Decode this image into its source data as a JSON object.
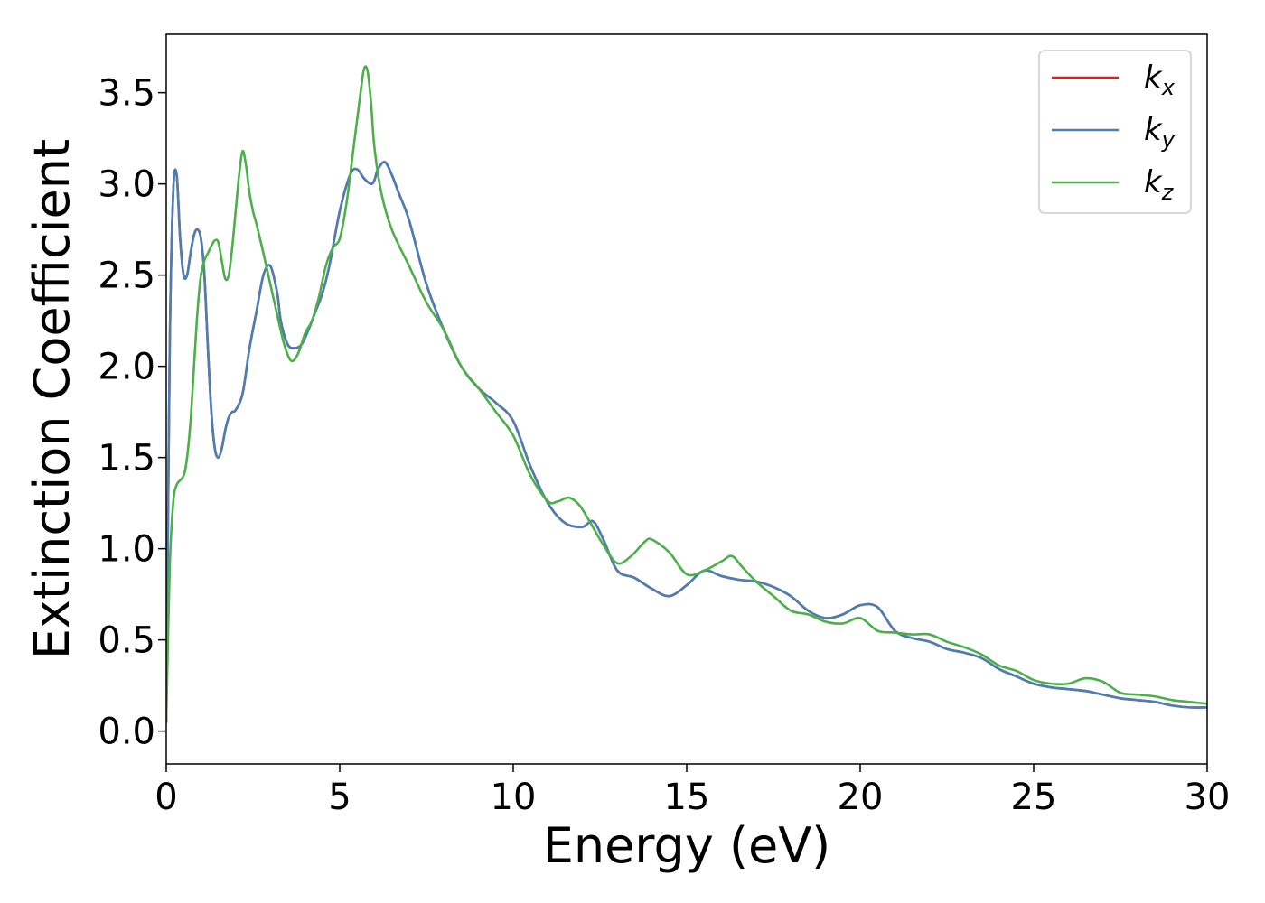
{
  "chart_data": {
    "type": "line",
    "title": "",
    "xlabel": "Energy (eV)",
    "ylabel": "Extinction Coefficient",
    "xlim": [
      0,
      30
    ],
    "ylim": [
      -0.18,
      3.82
    ],
    "xticks": [
      0,
      5,
      10,
      15,
      20,
      25,
      30
    ],
    "xtick_labels": [
      "0",
      "5",
      "10",
      "15",
      "20",
      "25",
      "30"
    ],
    "yticks": [
      0.0,
      0.5,
      1.0,
      1.5,
      2.0,
      2.5,
      3.0,
      3.5
    ],
    "ytick_labels": [
      "0.0",
      "0.5",
      "1.0",
      "1.5",
      "2.0",
      "2.5",
      "3.0",
      "3.5"
    ],
    "grid": false,
    "legend_position": "top-right",
    "series": [
      {
        "name": "k",
        "subscript": "x",
        "color": "#e41a1c",
        "x": [
          0,
          0.1,
          0.2,
          0.3,
          0.4,
          0.5,
          0.6,
          0.7,
          0.8,
          0.9,
          1.0,
          1.1,
          1.2,
          1.3,
          1.4,
          1.5,
          1.6,
          1.7,
          1.8,
          1.9,
          2.0,
          2.2,
          2.4,
          2.6,
          2.8,
          3.0,
          3.2,
          3.3,
          3.5,
          3.7,
          3.9,
          4.1,
          4.3,
          4.5,
          4.7,
          5.0,
          5.3,
          5.5,
          5.7,
          5.9,
          6.0,
          6.1,
          6.3,
          6.5,
          6.7,
          7.0,
          7.5,
          8.0,
          8.5,
          9.0,
          9.5,
          10.0,
          10.5,
          11.0,
          11.5,
          12.0,
          12.3,
          12.6,
          13.0,
          13.5,
          14.0,
          14.5,
          15.0,
          15.5,
          16.0,
          16.5,
          17.0,
          17.5,
          18.0,
          18.5,
          19.0,
          19.5,
          20.0,
          20.5,
          21.0,
          21.5,
          22.0,
          22.5,
          23.0,
          23.5,
          24.0,
          24.5,
          25.0,
          25.5,
          26.0,
          26.5,
          27.0,
          27.5,
          28.0,
          28.5,
          29.0,
          29.5,
          30.0
        ],
        "y": [
          0.05,
          2.1,
          2.95,
          3.05,
          2.7,
          2.5,
          2.5,
          2.62,
          2.72,
          2.75,
          2.7,
          2.5,
          2.1,
          1.75,
          1.55,
          1.5,
          1.55,
          1.65,
          1.72,
          1.75,
          1.76,
          1.85,
          2.1,
          2.3,
          2.5,
          2.55,
          2.4,
          2.25,
          2.12,
          2.1,
          2.12,
          2.2,
          2.3,
          2.4,
          2.55,
          2.85,
          3.05,
          3.08,
          3.03,
          3.0,
          3.02,
          3.08,
          3.12,
          3.05,
          2.95,
          2.8,
          2.45,
          2.2,
          2.0,
          1.88,
          1.8,
          1.7,
          1.45,
          1.25,
          1.14,
          1.12,
          1.15,
          1.05,
          0.88,
          0.84,
          0.78,
          0.74,
          0.8,
          0.88,
          0.85,
          0.83,
          0.82,
          0.79,
          0.74,
          0.66,
          0.62,
          0.64,
          0.69,
          0.68,
          0.55,
          0.51,
          0.49,
          0.45,
          0.43,
          0.4,
          0.34,
          0.3,
          0.26,
          0.24,
          0.23,
          0.22,
          0.2,
          0.18,
          0.17,
          0.16,
          0.14,
          0.13,
          0.13
        ]
      },
      {
        "name": "k",
        "subscript": "y",
        "color": "#4a7fb5",
        "x": [
          0,
          0.1,
          0.2,
          0.3,
          0.4,
          0.5,
          0.6,
          0.7,
          0.8,
          0.9,
          1.0,
          1.1,
          1.2,
          1.3,
          1.4,
          1.5,
          1.6,
          1.7,
          1.8,
          1.9,
          2.0,
          2.2,
          2.4,
          2.6,
          2.8,
          3.0,
          3.2,
          3.3,
          3.5,
          3.7,
          3.9,
          4.1,
          4.3,
          4.5,
          4.7,
          5.0,
          5.3,
          5.5,
          5.7,
          5.9,
          6.0,
          6.1,
          6.3,
          6.5,
          6.7,
          7.0,
          7.5,
          8.0,
          8.5,
          9.0,
          9.5,
          10.0,
          10.5,
          11.0,
          11.5,
          12.0,
          12.3,
          12.6,
          13.0,
          13.5,
          14.0,
          14.5,
          15.0,
          15.5,
          16.0,
          16.5,
          17.0,
          17.5,
          18.0,
          18.5,
          19.0,
          19.5,
          20.0,
          20.5,
          21.0,
          21.5,
          22.0,
          22.5,
          23.0,
          23.5,
          24.0,
          24.5,
          25.0,
          25.5,
          26.0,
          26.5,
          27.0,
          27.5,
          28.0,
          28.5,
          29.0,
          29.5,
          30.0
        ],
        "y": [
          0.05,
          2.1,
          2.95,
          3.05,
          2.7,
          2.5,
          2.5,
          2.62,
          2.72,
          2.75,
          2.7,
          2.5,
          2.1,
          1.75,
          1.55,
          1.5,
          1.55,
          1.65,
          1.72,
          1.75,
          1.76,
          1.85,
          2.1,
          2.3,
          2.5,
          2.55,
          2.4,
          2.25,
          2.12,
          2.1,
          2.12,
          2.2,
          2.3,
          2.4,
          2.55,
          2.85,
          3.05,
          3.08,
          3.03,
          3.0,
          3.02,
          3.08,
          3.12,
          3.05,
          2.95,
          2.8,
          2.45,
          2.2,
          2.0,
          1.88,
          1.8,
          1.7,
          1.45,
          1.25,
          1.14,
          1.12,
          1.15,
          1.05,
          0.88,
          0.84,
          0.78,
          0.74,
          0.8,
          0.88,
          0.85,
          0.83,
          0.82,
          0.79,
          0.74,
          0.66,
          0.62,
          0.64,
          0.69,
          0.68,
          0.55,
          0.51,
          0.49,
          0.45,
          0.43,
          0.4,
          0.34,
          0.3,
          0.26,
          0.24,
          0.23,
          0.22,
          0.2,
          0.18,
          0.17,
          0.16,
          0.14,
          0.13,
          0.13
        ]
      },
      {
        "name": "k",
        "subscript": "z",
        "color": "#4daf4a",
        "x": [
          0,
          0.1,
          0.2,
          0.3,
          0.5,
          0.6,
          0.7,
          0.8,
          0.9,
          1.0,
          1.1,
          1.2,
          1.3,
          1.4,
          1.5,
          1.6,
          1.7,
          1.8,
          1.9,
          2.0,
          2.1,
          2.2,
          2.3,
          2.4,
          2.5,
          2.6,
          2.8,
          3.0,
          3.2,
          3.4,
          3.6,
          3.8,
          4.0,
          4.2,
          4.4,
          4.6,
          4.8,
          5.0,
          5.2,
          5.4,
          5.6,
          5.7,
          5.8,
          5.9,
          6.0,
          6.2,
          6.5,
          7.0,
          7.5,
          8.0,
          8.5,
          9.0,
          9.5,
          10.0,
          10.5,
          11.0,
          11.3,
          11.6,
          11.9,
          12.2,
          12.6,
          13.0,
          13.4,
          13.8,
          14.0,
          14.5,
          15.0,
          15.5,
          16.0,
          16.3,
          16.6,
          17.0,
          17.5,
          18.0,
          18.5,
          19.0,
          19.5,
          20.0,
          20.5,
          21.0,
          21.5,
          22.0,
          22.5,
          23.0,
          23.5,
          24.0,
          24.5,
          25.0,
          25.5,
          26.0,
          26.5,
          27.0,
          27.5,
          28.0,
          28.5,
          29.0,
          29.5,
          30.0
        ],
        "y": [
          0.05,
          0.9,
          1.25,
          1.35,
          1.4,
          1.5,
          1.7,
          2.0,
          2.3,
          2.5,
          2.58,
          2.62,
          2.66,
          2.69,
          2.68,
          2.58,
          2.48,
          2.5,
          2.65,
          2.85,
          3.05,
          3.18,
          3.1,
          2.95,
          2.85,
          2.78,
          2.62,
          2.45,
          2.28,
          2.12,
          2.03,
          2.07,
          2.18,
          2.25,
          2.38,
          2.55,
          2.65,
          2.7,
          2.9,
          3.2,
          3.5,
          3.63,
          3.62,
          3.45,
          3.2,
          2.95,
          2.75,
          2.55,
          2.35,
          2.2,
          2.0,
          1.88,
          1.75,
          1.62,
          1.4,
          1.26,
          1.26,
          1.28,
          1.24,
          1.15,
          1.02,
          0.92,
          0.96,
          1.04,
          1.05,
          0.98,
          0.86,
          0.88,
          0.93,
          0.96,
          0.9,
          0.82,
          0.74,
          0.66,
          0.64,
          0.6,
          0.59,
          0.62,
          0.55,
          0.54,
          0.53,
          0.53,
          0.49,
          0.46,
          0.42,
          0.36,
          0.33,
          0.28,
          0.26,
          0.26,
          0.29,
          0.27,
          0.21,
          0.2,
          0.19,
          0.17,
          0.16,
          0.15
        ]
      }
    ]
  }
}
